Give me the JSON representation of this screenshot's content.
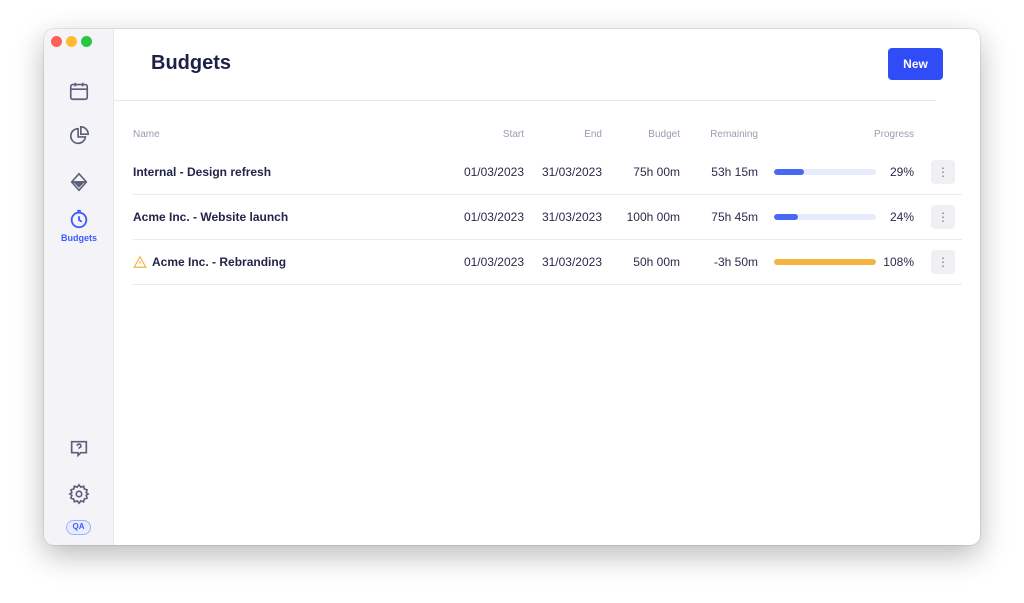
{
  "sidebar": {
    "items": [
      {
        "icon": "calendar-icon"
      },
      {
        "icon": "pie-chart-icon"
      },
      {
        "icon": "diamond-icon"
      },
      {
        "icon": "stopwatch-icon",
        "label": "Budgets",
        "active": true
      }
    ],
    "help_icon": "help-icon",
    "settings_icon": "gear-icon",
    "user_badge": "QA"
  },
  "header": {
    "title": "Budgets",
    "new_label": "New"
  },
  "table": {
    "columns": [
      "Name",
      "Start",
      "End",
      "Budget",
      "Remaining",
      "Progress"
    ],
    "rows": [
      {
        "name": "Internal - Design refresh",
        "start": "01/03/2023",
        "end": "31/03/2023",
        "budget": "75h 00m",
        "remaining": "53h 15m",
        "progress": 29,
        "progress_label": "29%",
        "warning": false
      },
      {
        "name": "Acme Inc. - Website launch",
        "start": "01/03/2023",
        "end": "31/03/2023",
        "budget": "100h 00m",
        "remaining": "75h 45m",
        "progress": 24,
        "progress_label": "24%",
        "warning": false
      },
      {
        "name": "Acme Inc. - Rebranding",
        "start": "01/03/2023",
        "end": "31/03/2023",
        "budget": "50h 00m",
        "remaining": "-3h 50m",
        "progress": 108,
        "progress_label": "108%",
        "warning": true
      }
    ]
  },
  "colors": {
    "accent": "#2f4cf6",
    "progress_normal": "#4a66f5",
    "progress_over": "#f5b342",
    "warning": "#f5b342"
  }
}
